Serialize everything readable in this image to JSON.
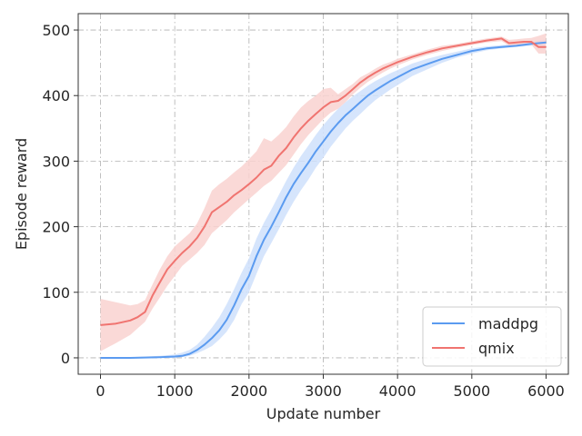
{
  "chart_data": {
    "type": "line",
    "title": "",
    "xlabel": "Update number",
    "ylabel": "Episode reward",
    "xlim": [
      -300,
      6300
    ],
    "ylim": [
      -25,
      525
    ],
    "xticks": [
      0,
      1000,
      2000,
      3000,
      4000,
      5000,
      6000
    ],
    "yticks": [
      0,
      100,
      200,
      300,
      400,
      500
    ],
    "grid": true,
    "legend_position": "lower-right",
    "series": [
      {
        "name": "maddpg",
        "color": "#5b9bf0",
        "band_color": "#cfe0fb",
        "x": [
          0,
          200,
          400,
          600,
          800,
          1000,
          1100,
          1200,
          1300,
          1400,
          1500,
          1600,
          1700,
          1800,
          1900,
          2000,
          2100,
          2200,
          2300,
          2400,
          2500,
          2600,
          2700,
          2800,
          2900,
          3000,
          3100,
          3200,
          3300,
          3400,
          3500,
          3600,
          3700,
          3800,
          3900,
          4000,
          4200,
          4400,
          4600,
          4800,
          5000,
          5200,
          5400,
          5600,
          5800,
          6000
        ],
        "y": [
          0,
          0,
          0,
          0.5,
          1,
          2,
          3,
          6,
          12,
          20,
          30,
          42,
          58,
          80,
          105,
          125,
          155,
          180,
          200,
          222,
          245,
          265,
          282,
          298,
          315,
          330,
          345,
          358,
          370,
          380,
          390,
          400,
          408,
          415,
          422,
          428,
          440,
          448,
          456,
          462,
          468,
          472,
          474,
          476,
          479,
          481
        ],
        "lower": [
          0,
          0,
          0,
          0,
          0,
          0,
          1,
          3,
          7,
          12,
          18,
          28,
          40,
          58,
          82,
          100,
          128,
          155,
          175,
          196,
          218,
          238,
          256,
          272,
          290,
          305,
          322,
          336,
          350,
          362,
          372,
          383,
          393,
          401,
          409,
          416,
          430,
          440,
          450,
          458,
          464,
          469,
          472,
          474,
          476,
          476
        ],
        "upper": [
          0,
          0,
          1,
          2,
          3,
          5,
          8,
          12,
          20,
          32,
          46,
          62,
          82,
          105,
          130,
          152,
          182,
          206,
          226,
          248,
          270,
          290,
          308,
          324,
          340,
          355,
          368,
          380,
          390,
          399,
          407,
          415,
          422,
          428,
          434,
          439,
          449,
          456,
          462,
          467,
          472,
          475,
          477,
          479,
          482,
          486
        ]
      },
      {
        "name": "qmix",
        "color": "#f07470",
        "band_color": "#f9d2d0",
        "x": [
          0,
          200,
          400,
          500,
          600,
          700,
          800,
          900,
          1000,
          1100,
          1200,
          1300,
          1400,
          1500,
          1600,
          1700,
          1800,
          1900,
          2000,
          2100,
          2200,
          2300,
          2400,
          2500,
          2600,
          2700,
          2800,
          2900,
          3000,
          3100,
          3200,
          3300,
          3400,
          3500,
          3600,
          3700,
          3800,
          3900,
          4000,
          4200,
          4400,
          4600,
          4800,
          5000,
          5200,
          5400,
          5500,
          5600,
          5700,
          5800,
          5900,
          6000
        ],
        "y": [
          50,
          52,
          57,
          62,
          70,
          95,
          115,
          135,
          148,
          160,
          170,
          183,
          200,
          222,
          230,
          238,
          248,
          256,
          265,
          275,
          287,
          293,
          308,
          320,
          336,
          350,
          362,
          372,
          382,
          390,
          392,
          400,
          410,
          420,
          428,
          435,
          441,
          446,
          451,
          459,
          466,
          472,
          476,
          480,
          484,
          487,
          480,
          481,
          482,
          482,
          474,
          474
        ],
        "lower": [
          10,
          22,
          35,
          45,
          55,
          75,
          92,
          110,
          125,
          140,
          150,
          160,
          172,
          190,
          200,
          210,
          222,
          232,
          242,
          252,
          262,
          270,
          282,
          294,
          310,
          326,
          340,
          352,
          364,
          374,
          380,
          390,
          402,
          412,
          421,
          428,
          435,
          441,
          446,
          455,
          462,
          468,
          473,
          477,
          481,
          483,
          476,
          477,
          478,
          478,
          464,
          464
        ],
        "upper": [
          90,
          85,
          80,
          82,
          88,
          112,
          135,
          155,
          170,
          180,
          190,
          205,
          228,
          255,
          265,
          273,
          283,
          292,
          303,
          315,
          335,
          330,
          340,
          352,
          368,
          382,
          392,
          400,
          410,
          412,
          402,
          410,
          418,
          428,
          434,
          441,
          447,
          451,
          456,
          463,
          470,
          476,
          479,
          483,
          487,
          490,
          485,
          486,
          487,
          488,
          491,
          495
        ]
      }
    ]
  }
}
